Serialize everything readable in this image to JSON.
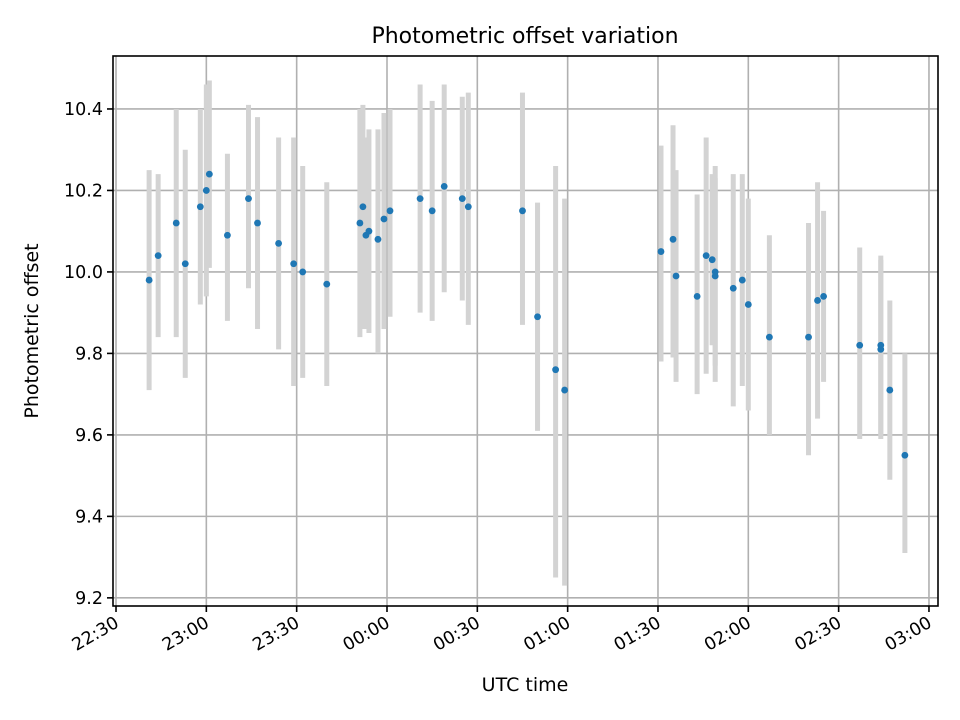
{
  "chart_data": {
    "type": "scatter",
    "title": "Photometric offset variation",
    "xlabel": "UTC time",
    "ylabel": "Photometric offset",
    "x_unit": "HH:MM",
    "xlim": [
      "22:29",
      "03:03"
    ],
    "ylim": [
      9.18,
      10.53
    ],
    "x_ticks": [
      "22:30",
      "23:00",
      "23:30",
      "00:00",
      "00:30",
      "01:00",
      "01:30",
      "02:00",
      "02:30",
      "03:00"
    ],
    "y_ticks": [
      "9.2",
      "9.4",
      "9.6",
      "9.8",
      "10.0",
      "10.2",
      "10.4"
    ],
    "grid": true,
    "errorbar_color": "#d3d3d3",
    "marker_color": "#1f77b4",
    "series": [
      {
        "points": [
          {
            "x": "22:41",
            "y": 9.98,
            "ylo": 9.71,
            "yhi": 10.25
          },
          {
            "x": "22:44",
            "y": 10.04,
            "ylo": 9.84,
            "yhi": 10.24
          },
          {
            "x": "22:50",
            "y": 10.12,
            "ylo": 9.84,
            "yhi": 10.4
          },
          {
            "x": "22:53",
            "y": 10.02,
            "ylo": 9.74,
            "yhi": 10.3
          },
          {
            "x": "22:58",
            "y": 10.16,
            "ylo": 9.92,
            "yhi": 10.4
          },
          {
            "x": "23:00",
            "y": 10.2,
            "ylo": 9.94,
            "yhi": 10.46
          },
          {
            "x": "23:01",
            "y": 10.24,
            "ylo": 10.01,
            "yhi": 10.47
          },
          {
            "x": "23:07",
            "y": 10.09,
            "ylo": 9.88,
            "yhi": 10.29
          },
          {
            "x": "23:14",
            "y": 10.18,
            "ylo": 9.96,
            "yhi": 10.41
          },
          {
            "x": "23:17",
            "y": 10.12,
            "ylo": 9.86,
            "yhi": 10.38
          },
          {
            "x": "23:24",
            "y": 10.07,
            "ylo": 9.81,
            "yhi": 10.33
          },
          {
            "x": "23:29",
            "y": 10.02,
            "ylo": 9.72,
            "yhi": 10.33
          },
          {
            "x": "23:32",
            "y": 10.0,
            "ylo": 9.74,
            "yhi": 10.26
          },
          {
            "x": "23:40",
            "y": 9.97,
            "ylo": 9.72,
            "yhi": 10.22
          },
          {
            "x": "23:51",
            "y": 10.12,
            "ylo": 9.84,
            "yhi": 10.4
          },
          {
            "x": "23:52",
            "y": 10.16,
            "ylo": 9.86,
            "yhi": 10.41
          },
          {
            "x": "23:53",
            "y": 10.09,
            "ylo": 9.86,
            "yhi": 10.33
          },
          {
            "x": "23:54",
            "y": 10.1,
            "ylo": 9.85,
            "yhi": 10.35
          },
          {
            "x": "23:57",
            "y": 10.08,
            "ylo": 9.8,
            "yhi": 10.35
          },
          {
            "x": "23:59",
            "y": 10.13,
            "ylo": 9.86,
            "yhi": 10.39
          },
          {
            "x": "00:01",
            "y": 10.15,
            "ylo": 9.89,
            "yhi": 10.4
          },
          {
            "x": "00:11",
            "y": 10.18,
            "ylo": 9.9,
            "yhi": 10.46
          },
          {
            "x": "00:15",
            "y": 10.15,
            "ylo": 9.88,
            "yhi": 10.42
          },
          {
            "x": "00:19",
            "y": 10.21,
            "ylo": 9.95,
            "yhi": 10.46
          },
          {
            "x": "00:25",
            "y": 10.18,
            "ylo": 9.93,
            "yhi": 10.43
          },
          {
            "x": "00:27",
            "y": 10.16,
            "ylo": 9.87,
            "yhi": 10.44
          },
          {
            "x": "00:45",
            "y": 10.15,
            "ylo": 9.87,
            "yhi": 10.44
          },
          {
            "x": "00:50",
            "y": 9.89,
            "ylo": 9.61,
            "yhi": 10.17
          },
          {
            "x": "00:56",
            "y": 9.76,
            "ylo": 9.25,
            "yhi": 10.26
          },
          {
            "x": "00:59",
            "y": 9.71,
            "ylo": 9.23,
            "yhi": 10.18
          },
          {
            "x": "01:31",
            "y": 10.05,
            "ylo": 9.78,
            "yhi": 10.31
          },
          {
            "x": "01:35",
            "y": 10.08,
            "ylo": 9.79,
            "yhi": 10.36
          },
          {
            "x": "01:36",
            "y": 9.99,
            "ylo": 9.73,
            "yhi": 10.25
          },
          {
            "x": "01:43",
            "y": 9.94,
            "ylo": 9.7,
            "yhi": 10.19
          },
          {
            "x": "01:46",
            "y": 10.04,
            "ylo": 9.75,
            "yhi": 10.33
          },
          {
            "x": "01:48",
            "y": 10.03,
            "ylo": 9.82,
            "yhi": 10.24
          },
          {
            "x": "01:49",
            "y": 9.99,
            "ylo": 9.73,
            "yhi": 10.26
          },
          {
            "x": "01:49",
            "y": 10.0,
            "ylo": 9.77,
            "yhi": 10.23
          },
          {
            "x": "01:55",
            "y": 9.96,
            "ylo": 9.67,
            "yhi": 10.24
          },
          {
            "x": "01:58",
            "y": 9.98,
            "ylo": 9.72,
            "yhi": 10.24
          },
          {
            "x": "02:00",
            "y": 9.92,
            "ylo": 9.66,
            "yhi": 10.18
          },
          {
            "x": "02:07",
            "y": 9.84,
            "ylo": 9.6,
            "yhi": 10.09
          },
          {
            "x": "02:20",
            "y": 9.84,
            "ylo": 9.55,
            "yhi": 10.12
          },
          {
            "x": "02:23",
            "y": 9.93,
            "ylo": 9.64,
            "yhi": 10.22
          },
          {
            "x": "02:25",
            "y": 9.94,
            "ylo": 9.73,
            "yhi": 10.15
          },
          {
            "x": "02:37",
            "y": 9.82,
            "ylo": 9.59,
            "yhi": 10.06
          },
          {
            "x": "02:44",
            "y": 9.81,
            "ylo": 9.59,
            "yhi": 10.03
          },
          {
            "x": "02:44",
            "y": 9.82,
            "ylo": 9.6,
            "yhi": 10.04
          },
          {
            "x": "02:47",
            "y": 9.71,
            "ylo": 9.49,
            "yhi": 9.93
          },
          {
            "x": "02:52",
            "y": 9.55,
            "ylo": 9.31,
            "yhi": 9.8
          }
        ]
      }
    ]
  }
}
